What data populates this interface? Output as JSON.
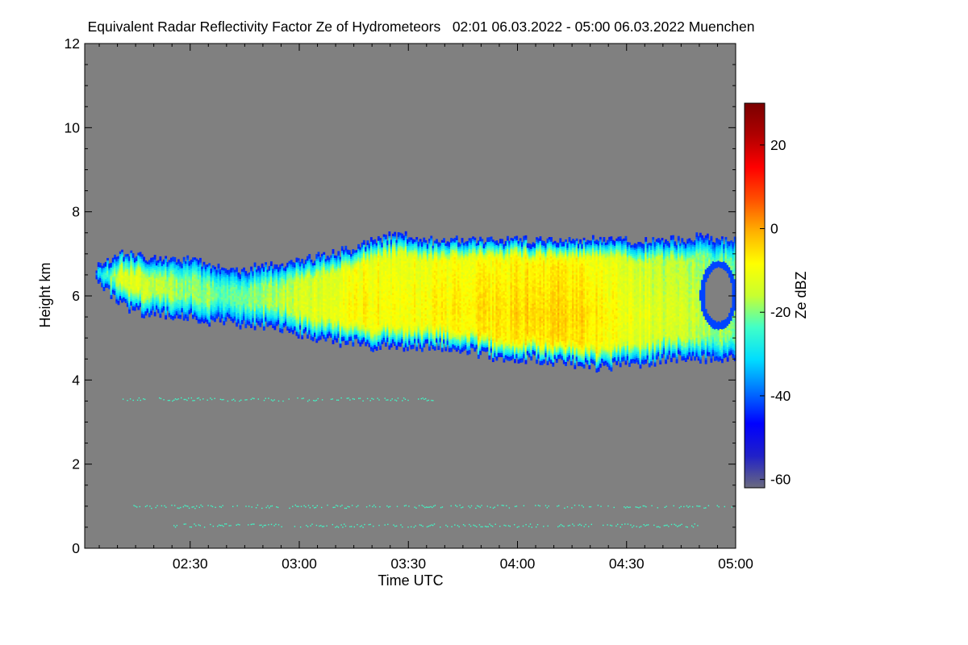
{
  "chart_data": {
    "type": "heatmap",
    "title": "Equivalent Radar Reflectivity Factor Ze of Hydrometeors   02:01 06.03.2022 - 05:00 06.03.2022 Muenchen",
    "xlabel": "Time UTC",
    "ylabel": "Height km",
    "x_unit": "minutes since 00:00 UTC",
    "xlim": [
      121,
      300
    ],
    "ylim": [
      0,
      12
    ],
    "x_ticks": [
      {
        "value": 150,
        "label": "02:30"
      },
      {
        "value": 180,
        "label": "03:00"
      },
      {
        "value": 210,
        "label": "03:30"
      },
      {
        "value": 240,
        "label": "04:00"
      },
      {
        "value": 270,
        "label": "04:30"
      },
      {
        "value": 300,
        "label": "05:00"
      }
    ],
    "x_minor_tick_step": 5,
    "y_ticks": [
      0,
      2,
      4,
      6,
      8,
      10,
      12
    ],
    "y_minor_tick_step": 0.5,
    "colorbar": {
      "label": "Ze dBZ",
      "range": [
        -62,
        30
      ],
      "ticks": [
        20,
        0,
        -20,
        -40,
        -60
      ],
      "colors": [
        "#6a6a7e",
        "#2020c8",
        "#0000ff",
        "#0070ff",
        "#00ddff",
        "#40ffc8",
        "#c8ff30",
        "#ffff00",
        "#ffb000",
        "#ff5000",
        "#ff0000",
        "#b00000",
        "#7a0000"
      ]
    },
    "background_color": "#808080",
    "echo_profile": {
      "time": [
        124,
        127,
        130,
        133,
        137,
        141,
        145,
        150,
        155,
        160,
        165,
        170,
        175,
        180,
        185,
        190,
        195,
        200,
        205,
        210,
        215,
        220,
        225,
        230,
        235,
        240,
        245,
        250,
        255,
        260,
        265,
        270,
        275,
        280,
        285,
        290,
        295,
        300
      ],
      "top_km": [
        6.7,
        6.8,
        7.0,
        7.0,
        6.9,
        6.9,
        6.8,
        6.9,
        6.7,
        6.6,
        6.6,
        6.7,
        6.7,
        6.8,
        6.9,
        7.0,
        7.1,
        7.3,
        7.4,
        7.4,
        7.3,
        7.3,
        7.3,
        7.3,
        7.3,
        7.3,
        7.3,
        7.3,
        7.3,
        7.3,
        7.3,
        7.3,
        7.3,
        7.3,
        7.3,
        7.4,
        7.3,
        7.3
      ],
      "base_km": [
        6.3,
        6.1,
        5.9,
        5.7,
        5.6,
        5.6,
        5.5,
        5.5,
        5.4,
        5.4,
        5.3,
        5.3,
        5.2,
        5.1,
        5.0,
        4.9,
        4.9,
        4.8,
        4.8,
        4.8,
        4.8,
        4.8,
        4.7,
        4.6,
        4.5,
        4.5,
        4.5,
        4.4,
        4.4,
        4.3,
        4.3,
        4.4,
        4.4,
        4.5,
        4.5,
        4.5,
        4.5,
        4.5
      ],
      "peak_dbz": [
        -22,
        -18,
        -14,
        -12,
        -14,
        -16,
        -18,
        -20,
        -20,
        -22,
        -20,
        -18,
        -16,
        -14,
        -12,
        -10,
        -8,
        -8,
        -8,
        -8,
        -8,
        -8,
        -6,
        -6,
        -6,
        -4,
        -4,
        -4,
        -4,
        -6,
        -8,
        -10,
        -12,
        -14,
        -14,
        -16,
        -18,
        -18
      ]
    },
    "hole": {
      "time_center": 295,
      "height_center_km": 6.0,
      "time_halfwidth": 4,
      "height_halfwidth_km": 0.65
    },
    "clutter": [
      {
        "height_km": 3.55,
        "x_from": 131,
        "x_to": 217,
        "dbz": -24
      },
      {
        "height_km": 1.0,
        "x_from": 134,
        "x_to": 300,
        "dbz": -24
      },
      {
        "height_km": 0.55,
        "x_from": 145,
        "x_to": 290,
        "dbz": -24
      }
    ]
  }
}
